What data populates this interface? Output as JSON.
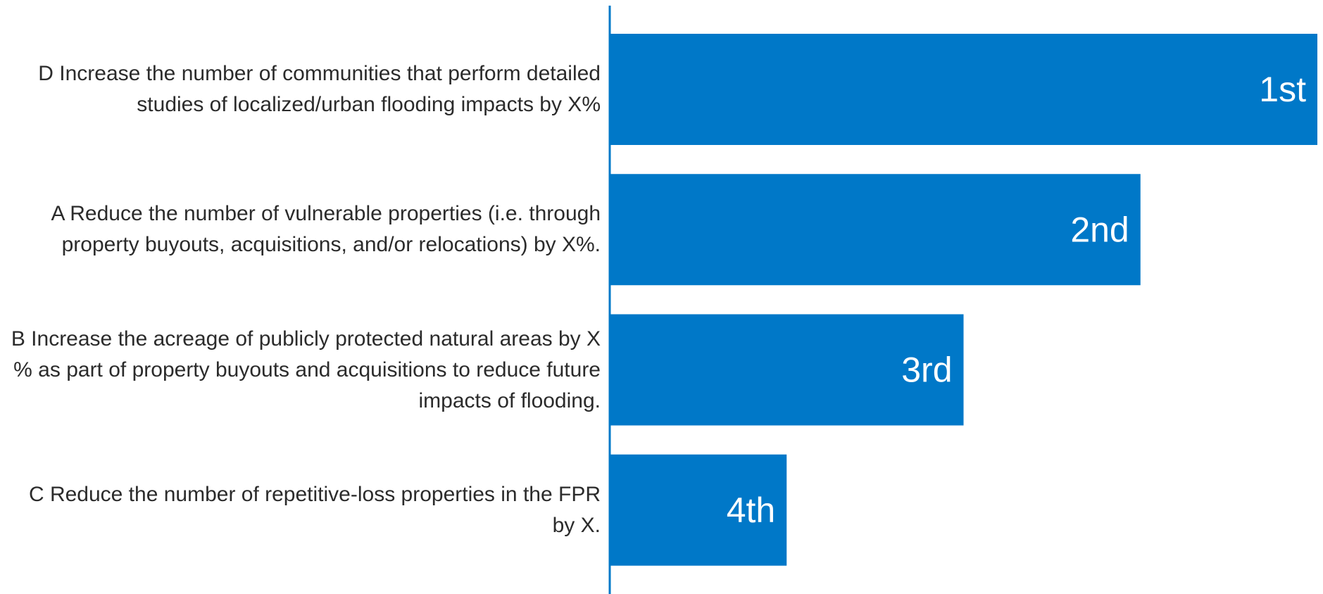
{
  "chart_data": {
    "type": "bar",
    "orientation": "horizontal",
    "categories": [
      "D Increase the number of communities that perform detailed studies of localized/urban flooding impacts by X%",
      "A Reduce the number of vulnerable properties (i.e. through property buyouts, acquisitions, and/or relocations) by X%.",
      "B Increase the acreage of publicly protected natural areas by X % as part of property buyouts and acquisitions to reduce future impacts of flooding.",
      "C Reduce the number of repetitive-loss properties in the FPR by X."
    ],
    "values": [
      1,
      2,
      3,
      4
    ],
    "value_labels": [
      "1st",
      "2nd",
      "3rd",
      "4th"
    ],
    "color": "#0078c8",
    "xlim": [
      5,
      1
    ]
  }
}
